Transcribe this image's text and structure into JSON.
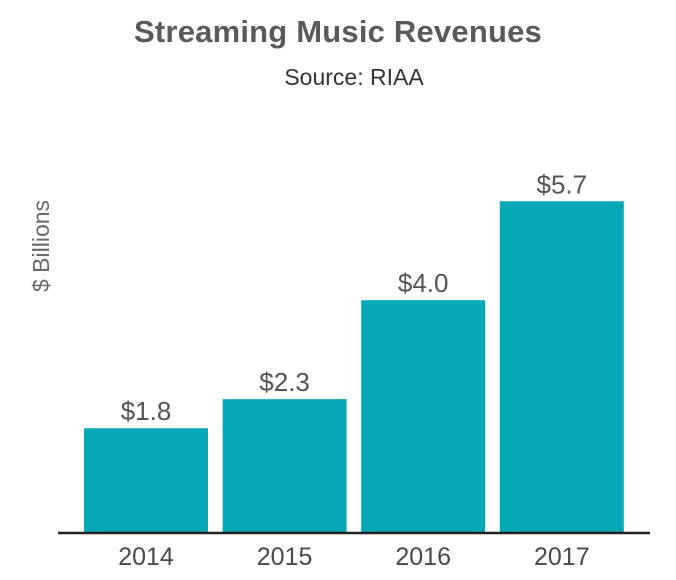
{
  "chart_data": {
    "type": "bar",
    "title": "Streaming Music Revenues",
    "subtitle": "Source: RIAA",
    "ylabel": "$ Billions",
    "xlabel": "",
    "categories": [
      "2014",
      "2015",
      "2016",
      "2017"
    ],
    "values": [
      1.8,
      2.3,
      4.0,
      5.7
    ],
    "value_labels": [
      "$1.8",
      "$2.3",
      "$4.0",
      "$5.7"
    ],
    "ylim": [
      0,
      6
    ],
    "grid": false,
    "legend": "none",
    "bar_color": "#05a8b6",
    "axis_color": "#222222"
  }
}
